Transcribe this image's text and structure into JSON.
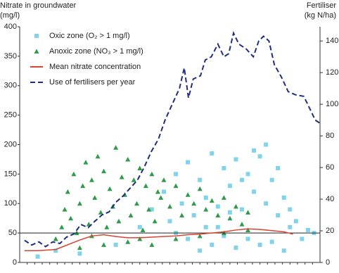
{
  "chart_data": {
    "type": "scatter",
    "ylabel": [
      "Nitrate in groundwater",
      "(mg/l)"
    ],
    "y2label": [
      "Fertiliser",
      "(kg N/ha)"
    ],
    "xlim": [
      0,
      50
    ],
    "ylim": [
      0,
      400
    ],
    "yticks": [
      0,
      50,
      100,
      150,
      200,
      250,
      300,
      350,
      400
    ],
    "y2lim": [
      0,
      149
    ],
    "y2ticks": [
      0,
      20,
      40,
      60,
      80,
      100,
      120,
      140
    ],
    "reference_line": 50,
    "legend": "upper left",
    "series": [
      {
        "name": "Oxic zone (O₂ > 1 mg/l)",
        "type": "scatter",
        "marker": "square",
        "color": "#7fd3ea",
        "x": [
          3,
          6,
          10,
          16,
          20,
          22,
          24,
          25,
          26,
          27,
          28,
          29,
          30,
          31,
          32,
          33,
          34,
          35,
          36,
          37,
          38,
          39,
          40,
          41,
          42,
          43,
          44,
          45,
          46,
          47,
          48,
          49,
          28,
          30,
          32,
          34,
          36,
          38,
          40,
          42,
          44,
          26,
          41,
          39,
          33,
          31,
          35,
          37,
          43,
          45
        ],
        "values": [
          10,
          20,
          15,
          30,
          60,
          90,
          120,
          70,
          150,
          100,
          170,
          80,
          140,
          110,
          185,
          60,
          160,
          130,
          175,
          90,
          150,
          120,
          180,
          100,
          140,
          80,
          110,
          60,
          70,
          40,
          55,
          50,
          40,
          20,
          30,
          45,
          25,
          40,
          30,
          35,
          20,
          50,
          200,
          190,
          95,
          60,
          85,
          140,
          160,
          90
        ]
      },
      {
        "name": "Anoxic zone (NO₃ > 1 mg/l)",
        "type": "scatter",
        "marker": "triangle",
        "color": "#2e9a4a",
        "x": [
          6,
          7,
          7.5,
          8,
          8.5,
          9,
          9.5,
          10,
          10.5,
          11,
          11.5,
          12,
          12.5,
          13,
          13.5,
          14,
          14.5,
          15,
          15.5,
          16,
          16.5,
          17,
          17.5,
          18,
          18.5,
          19,
          19.5,
          20,
          20.5,
          21,
          21.5,
          22,
          22.5,
          23,
          23.5,
          24,
          25,
          26,
          27,
          28,
          29,
          30,
          31,
          32,
          33,
          34,
          35,
          36,
          37,
          38,
          10,
          14,
          18,
          22,
          26,
          30,
          34,
          38,
          12,
          20
        ],
        "values": [
          40,
          60,
          90,
          120,
          75,
          150,
          50,
          100,
          130,
          170,
          65,
          140,
          110,
          180,
          85,
          155,
          60,
          125,
          95,
          195,
          70,
          145,
          115,
          175,
          80,
          140,
          100,
          160,
          55,
          130,
          90,
          150,
          70,
          120,
          110,
          140,
          95,
          130,
          80,
          115,
          100,
          125,
          90,
          105,
          80,
          110,
          75,
          95,
          65,
          85,
          25,
          30,
          35,
          30,
          40,
          45,
          50,
          55,
          45,
          40
        ]
      },
      {
        "name": "Mean nitrate concentration",
        "type": "line",
        "color": "#d9432f",
        "x": [
          0.8,
          3,
          6,
          8,
          10,
          12,
          14,
          16,
          18,
          20,
          22,
          24,
          26,
          28,
          30,
          32,
          34,
          36,
          38,
          40,
          42,
          44,
          45.5
        ],
        "values": [
          20,
          20,
          22,
          30,
          38,
          45,
          47,
          44,
          42,
          42,
          43,
          44,
          45,
          47,
          48,
          50,
          52,
          55,
          57,
          56,
          54,
          52,
          48
        ]
      },
      {
        "name": "Use of fertilisers per year",
        "type": "line",
        "line_style": "dashed",
        "axis": "y2",
        "color": "#1f2f7f",
        "x": [
          0.8,
          2,
          3.2,
          4.3,
          5.5,
          6.7,
          7.8,
          9,
          10.2,
          11.4,
          12.5,
          13.7,
          14.9,
          16,
          17.2,
          18.4,
          19.6,
          20.7,
          21.9,
          23.1,
          24.2,
          25.4,
          26.6,
          27.4,
          28.1,
          28.9,
          30.1,
          30.9,
          31.9,
          33,
          34,
          34.8,
          35.6,
          36.5,
          37.7,
          38.9,
          39.8,
          40.6,
          41.5,
          42.4,
          43.6,
          44.7,
          45.9,
          47.3,
          48.2,
          49.2,
          50
        ],
        "values": [
          14,
          11,
          13,
          10,
          13,
          12,
          16,
          18,
          24,
          22,
          26,
          30,
          32,
          38,
          42,
          47,
          52,
          60,
          70,
          78,
          90,
          100,
          110,
          123,
          104,
          116,
          118,
          128,
          130,
          138,
          130,
          132,
          145,
          138,
          135,
          130,
          140,
          143,
          140,
          125,
          117,
          108,
          106,
          105,
          98,
          90,
          88
        ]
      }
    ]
  }
}
